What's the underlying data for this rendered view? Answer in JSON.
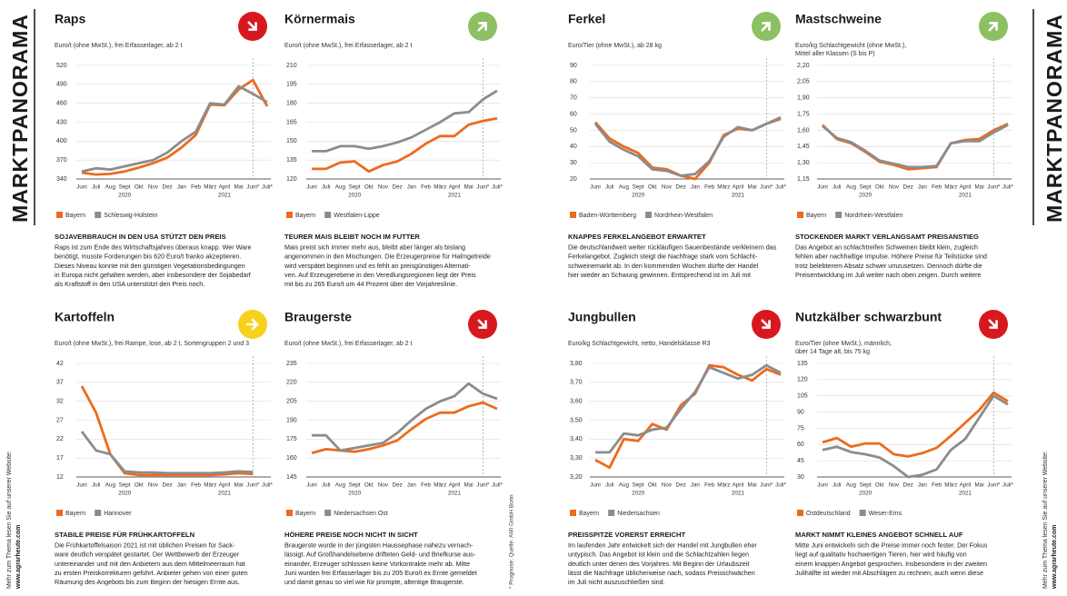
{
  "sidebar_left": {
    "title": "MARKTPANORAMA",
    "note": "Mehr zum Thema lesen Sie auf unserer Website:",
    "url": "www.agrarheute.com"
  },
  "sidebar_right": {
    "title": "MARKTPANORAMA",
    "note": "Mehr zum Thema lesen Sie auf unserer Website:",
    "url": "www.agrarheute.com"
  },
  "footnote": "* Prognose; Quelle: AMI GmbH Bonn",
  "chart_data": [
    {
      "type": "line",
      "title": "Raps",
      "trend": "down",
      "trend_color": "#d7191f",
      "unit": [
        "Euro/t (ohne MwSt.), frei Erfasserlager, ab 2 t"
      ],
      "categories": [
        "Juni",
        "Juli",
        "Aug",
        "Sept",
        "Okt",
        "Nov",
        "Dez",
        "Jan",
        "Feb",
        "März",
        "April",
        "Mai",
        "Juni*",
        "Juli*"
      ],
      "year_labels": [
        "2020",
        "2021"
      ],
      "series": [
        {
          "name": "Bayern",
          "color": "#ee6a1d",
          "values": [
            350,
            347,
            348,
            352,
            358,
            365,
            374,
            390,
            410,
            458,
            457,
            482,
            497,
            455
          ]
        },
        {
          "name": "Schleswig-Holstein",
          "color": "#8c8c8c",
          "values": [
            352,
            357,
            355,
            360,
            365,
            370,
            382,
            400,
            415,
            460,
            458,
            487,
            475,
            462
          ]
        }
      ],
      "ylim": [
        340,
        520
      ],
      "yticks": [
        340,
        370,
        400,
        430,
        460,
        490,
        520
      ],
      "grid": true,
      "headline": "SOJAVERBRAUCH IN DEN USA STÜTZT DEN PREIS",
      "body": [
        "Raps ist zum Ende des Wirtschaftsjahres überaus knapp. Wer Ware",
        "benötigt, musste Forderungen bis 620 Euro/t franko akzeptieren.",
        "Dieses Niveau konnte mit den günstigen Vegetationsbedingungen",
        "in Europa nicht gehalten werden, aber insbesondere der Sojabedarf",
        "als Kraftstoff in den USA unterstützt den Preis noch."
      ]
    },
    {
      "type": "line",
      "title": "Körnermais",
      "trend": "up",
      "trend_color": "#8cc063",
      "unit": [
        "Euro/t (ohne MwSt.), frei Erfasserlager, ab 2 t"
      ],
      "categories": [
        "Juni",
        "Juli",
        "Aug",
        "Sept",
        "Okt",
        "Nov",
        "Dez",
        "Jan",
        "Feb",
        "März",
        "April",
        "Mai",
        "Juni*",
        "Juli*"
      ],
      "year_labels": [
        "2020",
        "2021"
      ],
      "series": [
        {
          "name": "Bayern",
          "color": "#ee6a1d",
          "values": [
            128,
            128,
            133,
            134,
            126,
            131,
            134,
            140,
            148,
            154,
            154,
            163,
            166,
            168
          ]
        },
        {
          "name": "Westfalen-Lippe",
          "color": "#8c8c8c",
          "values": [
            142,
            142,
            146,
            146,
            144,
            146,
            149,
            153,
            159,
            165,
            172,
            173,
            183,
            190
          ]
        }
      ],
      "ylim": [
        120,
        210
      ],
      "yticks": [
        120,
        135,
        150,
        165,
        180,
        195,
        210
      ],
      "grid": true,
      "headline": "TEURER MAIS BLEIBT NOCH IM FUTTER",
      "body": [
        "Mais preist sich immer mehr aus, bleibt aber länger als bislang",
        "angenommen in den Mischungen. Die Erzeugerpreise für Halmgetreide",
        "wird verspätet beginnen und es fehlt an preisgünstigen Alternati-",
        "ven. Auf Erzeugerebene in den Veredlungsregionen liegt der Preis",
        "mit bis zu 265 Euro/t um 44 Prozent über der Vorjahreslinie."
      ]
    },
    {
      "type": "line",
      "title": "Ferkel",
      "trend": "up",
      "trend_color": "#8cc063",
      "unit": [
        "Euro/Tier (ohne MwSt.), ab 28 kg"
      ],
      "categories": [
        "Juni",
        "Juli",
        "Aug",
        "Sept",
        "Okt",
        "Nov",
        "Dez",
        "Jan",
        "Feb",
        "März",
        "April",
        "Mai",
        "Juni*",
        "Juli*"
      ],
      "year_labels": [
        "2020",
        "2021"
      ],
      "series": [
        {
          "name": "Baden-Württemberg",
          "color": "#ee6a1d",
          "values": [
            55,
            45,
            40,
            36,
            27,
            26,
            22,
            20,
            30,
            47,
            51,
            50,
            54,
            57
          ]
        },
        {
          "name": "Nordrhein-Westfalen",
          "color": "#8c8c8c",
          "values": [
            54,
            43,
            38,
            34,
            26,
            25,
            22,
            23,
            31,
            46,
            52,
            50,
            54,
            58
          ]
        }
      ],
      "ylim": [
        20,
        90
      ],
      "yticks": [
        20,
        30,
        40,
        50,
        60,
        70,
        80,
        90
      ],
      "grid": true,
      "headline": "KNAPPES FERKELANGEBOT ERWARTET",
      "body": [
        "Die deutschlandweit weiter rückläufigen Sauenbestände verkleinern das",
        "Ferkelangebot. Zugleich steigt die Nachfrage stark vom Schlacht-",
        "schweinemarkt ab. In den kommenden Wochen dürfte der Handel",
        "hier wieder an Schwung gewinnen. Entsprechend ist im Juli mit"
      ]
    },
    {
      "type": "line",
      "title": "Mastschweine",
      "trend": "up",
      "trend_color": "#8cc063",
      "unit": [
        "Euro/kg Schlachtgewicht (ohne MwSt.),",
        "Mittel aller Klassen (S bis P)"
      ],
      "categories": [
        "Juni",
        "Juli",
        "Aug",
        "Sept",
        "Okt",
        "Nov",
        "Dez",
        "Jan",
        "Feb",
        "März",
        "April",
        "Mai",
        "Juni*",
        "Juli*"
      ],
      "year_labels": [
        "2020",
        "2021"
      ],
      "series": [
        {
          "name": "Bayern",
          "color": "#ee6a1d",
          "values": [
            1.65,
            1.52,
            1.48,
            1.4,
            1.31,
            1.28,
            1.24,
            1.25,
            1.26,
            1.48,
            1.51,
            1.52,
            1.6,
            1.66
          ]
        },
        {
          "name": "Nordrhein-Westfalen",
          "color": "#8c8c8c",
          "values": [
            1.64,
            1.53,
            1.49,
            1.41,
            1.32,
            1.29,
            1.26,
            1.26,
            1.27,
            1.48,
            1.5,
            1.5,
            1.58,
            1.65
          ]
        }
      ],
      "ylim": [
        1.15,
        2.2
      ],
      "yticks": [
        {
          "value": 1.15,
          "label": "1,15"
        },
        {
          "value": 1.3,
          "label": "1,30"
        },
        {
          "value": 1.45,
          "label": "1,45"
        },
        {
          "value": 1.6,
          "label": "1,60"
        },
        {
          "value": 1.75,
          "label": "1,75"
        },
        {
          "value": 1.9,
          "label": "1,90"
        },
        {
          "value": 2.05,
          "label": "2,05"
        },
        {
          "value": 2.2,
          "label": "2,20"
        }
      ],
      "grid": true,
      "headline": "STOCKENDER MARKT VERLANGSAMT PREISANSTIEG",
      "body": [
        "Das Angebot an schlachtreifen Schweinen bleibt klein, zugleich",
        "fehlen aber nachhaltige Impulse. Höhere Preise für Teilstücke sind",
        "trotz belebterem Absatz schwer umzusetzen. Dennoch dürfte die",
        "Preisentwicklung im Juli weiter nach oben zeigen. Durch weitere"
      ]
    },
    {
      "type": "line",
      "title": "Kartoffeln",
      "trend": "flat",
      "trend_color": "#f6d21c",
      "unit": [
        "Euro/t (ohne MwSt.), frei Rampe, lose, ab 2 t, Sortengruppen 2 und 3"
      ],
      "categories": [
        "Juni",
        "Juli",
        "Aug",
        "Sept",
        "Okt",
        "Nov",
        "Dez",
        "Jan",
        "Feb",
        "März",
        "April",
        "Mai",
        "Juni*",
        "Juli*"
      ],
      "year_labels": [
        "2020",
        "2021"
      ],
      "series": [
        {
          "name": "Bayern",
          "color": "#ee6a1d",
          "values": [
            36,
            29,
            18,
            13,
            12.5,
            12.5,
            12.5,
            12.5,
            12.5,
            12.5,
            12.7,
            13,
            12.8,
            null
          ]
        },
        {
          "name": "Hannover",
          "color": "#8c8c8c",
          "values": [
            24,
            19,
            18,
            13.5,
            13.2,
            13.2,
            13,
            13,
            13,
            13,
            13.2,
            13.5,
            13.3,
            null
          ]
        }
      ],
      "ylim": [
        12,
        42
      ],
      "yticks": [
        12,
        17,
        22,
        27,
        32,
        37,
        42
      ],
      "grid": true,
      "headline": "STABILE PREISE FÜR FRÜHKARTOFFELN",
      "body": [
        "Die Frühkartoffelsaison 2021 ist mit üblichen Preisen für Sack-",
        "ware deutlich verspätet gestartet. Der Wettbewerb der Erzeuger",
        "untereinander und mit den Anbietern aus dem Mittelmeerraum hat",
        "zu ersten Preiskorrekturen geführt. Anbieter gehen von einer guten",
        "Räumung des Angebots bis zum Beginn der hiesigen Ernte aus."
      ]
    },
    {
      "type": "line",
      "title": "Braugerste",
      "trend": "down",
      "trend_color": "#d7191f",
      "unit": [
        "Euro/t (ohne MwSt.), frei Erfasserlager, ab 2 t"
      ],
      "categories": [
        "Juni",
        "Juli",
        "Aug",
        "Sept",
        "Okt",
        "Nov",
        "Dez",
        "Jan",
        "Feb",
        "März",
        "April",
        "Mai",
        "Juni*",
        "Juli*"
      ],
      "year_labels": [
        "2020",
        "2021"
      ],
      "series": [
        {
          "name": "Bayern",
          "color": "#ee6a1d",
          "values": [
            164,
            167,
            166,
            165,
            167,
            170,
            174,
            183,
            191,
            196,
            196,
            201,
            204,
            199
          ]
        },
        {
          "name": "Niedersachsen Ost",
          "color": "#8c8c8c",
          "values": [
            178,
            178,
            166,
            168,
            170,
            172,
            180,
            190,
            199,
            205,
            209,
            219,
            211,
            207
          ]
        }
      ],
      "ylim": [
        145,
        235
      ],
      "yticks": [
        145,
        160,
        175,
        190,
        205,
        220,
        235
      ],
      "grid": true,
      "headline": "HÖHERE PREISE NOCH NICHT IN SICHT",
      "body": [
        "Braugerste wurde in der jüngsten Haussephase nahezu vernach-",
        "lässigt. Auf Großhandelsebene drifteten Geld- und Briefkurse aus-",
        "einander, Erzeuger schlossen keine Vorkontrakte mehr ab. Mitte",
        "Juni wurden frei Erfasserlager bis zu 205 Euro/t ex Ernte gemeldet",
        "und damit genau so viel wie für prompte, altentige Braugerste."
      ]
    },
    {
      "type": "line",
      "title": "Jungbullen",
      "trend": "down",
      "trend_color": "#d7191f",
      "unit": [
        "Euro/kg Schlachtgewicht, netto, Handelsklasse R3"
      ],
      "categories": [
        "Juni",
        "Juli",
        "Aug",
        "Sept",
        "Okt",
        "Nov",
        "Dez",
        "Jan",
        "Feb",
        "März",
        "April",
        "Mai",
        "Juni*",
        "Juli*"
      ],
      "year_labels": [
        "2020",
        "2021"
      ],
      "series": [
        {
          "name": "Bayern",
          "color": "#ee6a1d",
          "values": [
            3.29,
            3.25,
            3.4,
            3.39,
            3.48,
            3.45,
            3.58,
            3.64,
            3.79,
            3.78,
            3.74,
            3.71,
            3.77,
            3.74
          ]
        },
        {
          "name": "Niedersachsen",
          "color": "#8c8c8c",
          "values": [
            3.33,
            3.33,
            3.43,
            3.42,
            3.45,
            3.46,
            3.56,
            3.65,
            3.78,
            3.75,
            3.72,
            3.74,
            3.79,
            3.75
          ]
        }
      ],
      "ylim": [
        3.2,
        3.8
      ],
      "yticks": [
        {
          "value": 3.2,
          "label": "3,20"
        },
        {
          "value": 3.3,
          "label": "3,30"
        },
        {
          "value": 3.4,
          "label": "3,40"
        },
        {
          "value": 3.5,
          "label": "3,50"
        },
        {
          "value": 3.6,
          "label": "3,60"
        },
        {
          "value": 3.7,
          "label": "3,70"
        },
        {
          "value": 3.8,
          "label": "3,80"
        }
      ],
      "grid": true,
      "headline": "PREISSPITZE VORERST ERREICHT",
      "body": [
        "Im laufenden Jahr entwickelt sich der Handel mit Jungbullen eher",
        "untypisch. Das Angebot ist klein und die Schlachtzahlen liegen",
        "deutlich unter denen des Vorjahres. Mit Beginn der Urlaubszeit",
        "lässt die Nachfrage üblicherweise nach, sodass Preisschwächen",
        "im Juli nicht auszuschließen sind."
      ]
    },
    {
      "type": "line",
      "title": "Nutzkälber schwarzbunt",
      "trend": "down",
      "trend_color": "#d7191f",
      "unit": [
        "Euro/Tier (ohne MwSt.), männlich,",
        "über 14 Tage alt, bis 75 kg"
      ],
      "categories": [
        "Juni",
        "Juli",
        "Aug",
        "Sept",
        "Okt",
        "Nov",
        "Dez",
        "Jan",
        "Feb",
        "März",
        "April",
        "Mai",
        "Juni*",
        "Juli*"
      ],
      "year_labels": [
        "2020",
        "2021"
      ],
      "series": [
        {
          "name": "Ostdeutschland",
          "color": "#ee6a1d",
          "values": [
            62,
            66,
            58,
            61,
            61,
            51,
            49,
            52,
            57,
            68,
            80,
            92,
            108,
            100
          ]
        },
        {
          "name": "Weser-Ems",
          "color": "#8c8c8c",
          "values": [
            55,
            58,
            53,
            51,
            48,
            40,
            30,
            32,
            37,
            55,
            65,
            85,
            105,
            97
          ]
        }
      ],
      "ylim": [
        30,
        135
      ],
      "yticks": [
        30,
        45,
        60,
        75,
        90,
        105,
        120,
        135
      ],
      "grid": true,
      "headline": "MARKT NIMMT KLEINES ANGEBOT SCHNELL AUF",
      "body": [
        "Mitte Juni entwickeln sich die Preise immer noch fester. Der Fokus",
        "liegt auf qualitativ hochwertigen Tieren, hier wird häufig von",
        "einem knappen Angebot gesprochen. Insbesondere in der zweiten",
        "Julihälfte ist wieder mit Abschlägen zu rechnen, auch wenn diese"
      ]
    }
  ]
}
